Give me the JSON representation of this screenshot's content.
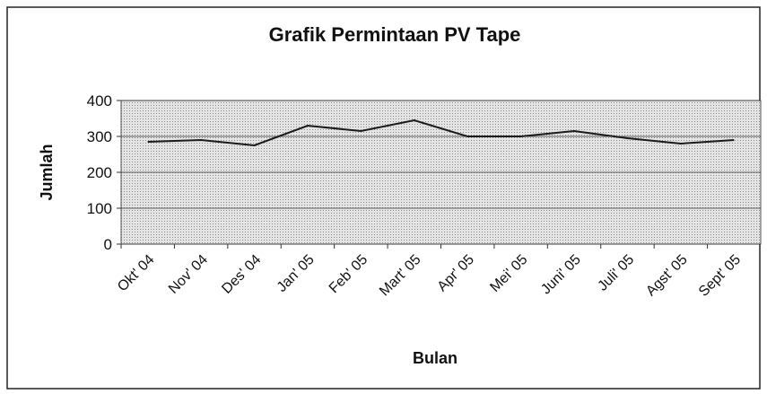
{
  "chart_data": {
    "type": "line",
    "title": "Grafik Permintaan PV Tape",
    "x_label": "Bulan",
    "y_label": "Jumlah",
    "categories": [
      "Okt' 04",
      "Nov' 04",
      "Des' 04",
      "Jan' 05",
      "Feb' 05",
      "Mart' 05",
      "Apr' 05",
      "Mei' 05",
      "Juni' 05",
      "Juli' 05",
      "Agst' 05",
      "Sept' 05"
    ],
    "series": [
      {
        "name": "Jumlah",
        "color": "#1a1a1a",
        "values": [
          285,
          290,
          275,
          330,
          315,
          345,
          300,
          300,
          315,
          295,
          280,
          290
        ]
      }
    ],
    "ylim": [
      0,
      400
    ],
    "yticks": [
      0,
      100,
      200,
      300,
      400
    ],
    "grid": true
  }
}
